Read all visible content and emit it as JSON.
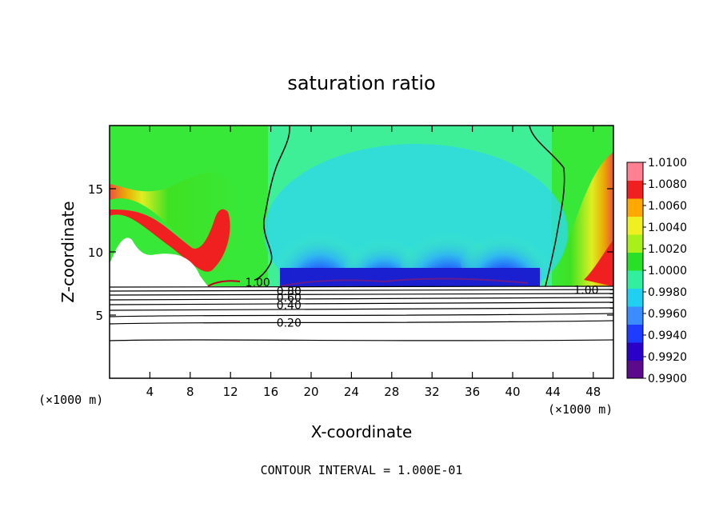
{
  "chart_data": {
    "type": "heatmap",
    "title": "saturation ratio",
    "xlabel": "X-coordinate",
    "ylabel": "Z-coordinate",
    "x_unit_label": "(×1000 m)",
    "x_ticks": [
      4,
      8,
      12,
      16,
      20,
      24,
      28,
      32,
      36,
      40,
      44,
      48
    ],
    "y_ticks": [
      5,
      10,
      15
    ],
    "xlim": [
      0,
      50
    ],
    "ylim": [
      0,
      20
    ],
    "footer": "CONTOUR INTERVAL = 1.000E-01",
    "colorbar": {
      "labels": [
        "1.0100",
        "1.0080",
        "1.0060",
        "1.0040",
        "1.0020",
        "1.0000",
        "0.9980",
        "0.9960",
        "0.9940",
        "0.9920",
        "0.9900"
      ],
      "range": [
        0.99,
        1.01
      ],
      "colors": [
        "#5a0a8a",
        "#2a00c8",
        "#1e3cff",
        "#3a8cff",
        "#20d0f0",
        "#30f0a0",
        "#28e028",
        "#a8f018",
        "#f0f020",
        "#ffa800",
        "#f02020",
        "#ff8090"
      ]
    },
    "contour_labels": [
      {
        "text": "1.00",
        "x": 14.7,
        "z": 7.6
      },
      {
        "text": "1.00",
        "x": 47.3,
        "z": 7.0
      },
      {
        "text": "0.80",
        "x": 17.8,
        "z": 6.9
      },
      {
        "text": "0.60",
        "x": 17.8,
        "z": 6.4
      },
      {
        "text": "0.40",
        "x": 17.8,
        "z": 5.8
      },
      {
        "text": "0.20",
        "x": 17.8,
        "z": 4.4
      }
    ],
    "contour_levels": [
      0.2,
      0.4,
      0.6,
      0.8,
      1.0
    ],
    "cloud_base_z": 7.3
  }
}
